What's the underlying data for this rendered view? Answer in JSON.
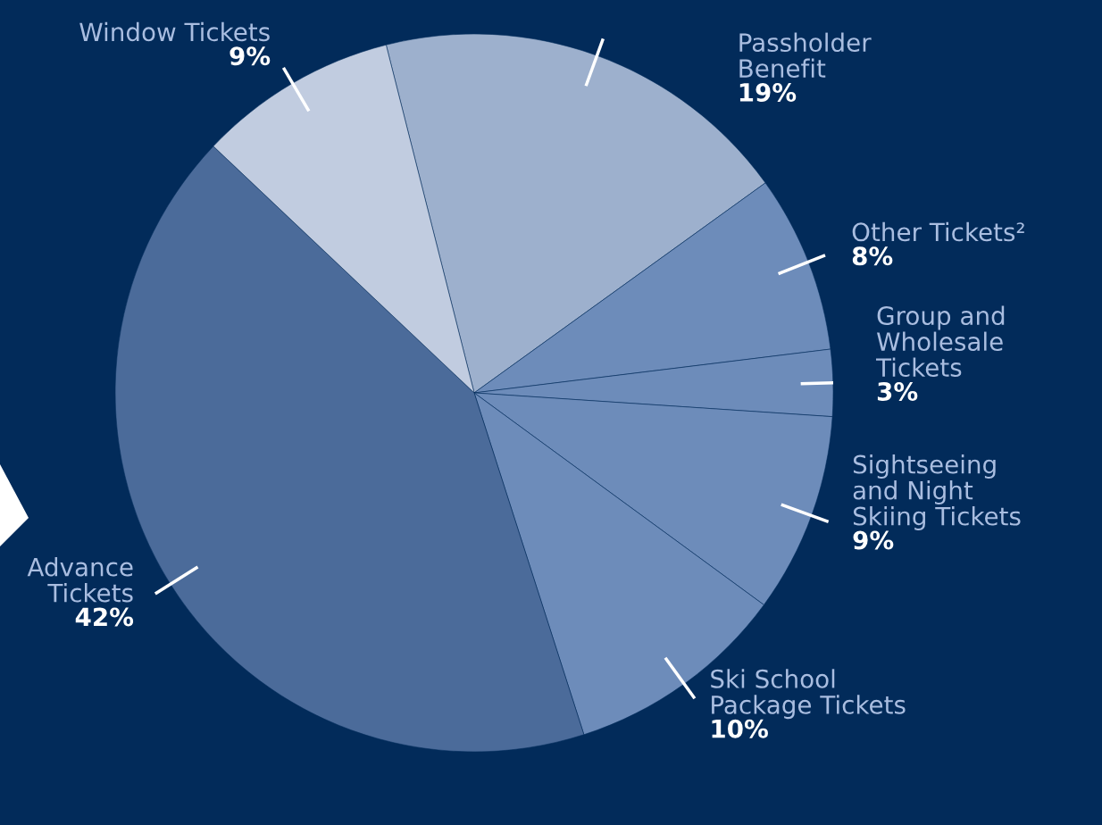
{
  "chart_data": {
    "type": "pie",
    "categories": [
      "Passholder\nBenefit",
      "Other Tickets²",
      "Group and\nWholesale\nTickets",
      "Sightseeing\nand Night\nSkiing Tickets",
      "Ski School\nPackage Tickets",
      "Advance\nTickets",
      "Window Tickets"
    ],
    "values": [
      19,
      8,
      3,
      9,
      10,
      42,
      9
    ],
    "colors": [
      "#9db0cd",
      "#6d8cba",
      "#6d8cba",
      "#6d8cba",
      "#6d8cba",
      "#4b6b9a",
      "#c1cce0"
    ],
    "value_labels": [
      "19%",
      "8%",
      "3%",
      "9%",
      "10%",
      "42%",
      "9%"
    ]
  }
}
